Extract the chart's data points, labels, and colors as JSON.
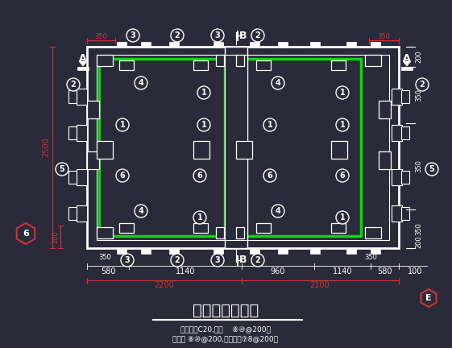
{
  "bg_color": "#2a2a3a",
  "white": "#ffffff",
  "green": "#00dd00",
  "red": "#cc3333",
  "fig_width": 5.61,
  "fig_height": 4.32,
  "dpi": 100,
  "title": "梯井基础平面图",
  "sub1": "（混凝土C20,配筋    ⑧⑩@200）",
  "sub2": "（配筋 ⑧⑩@200,其它配筋⑦8@200）"
}
